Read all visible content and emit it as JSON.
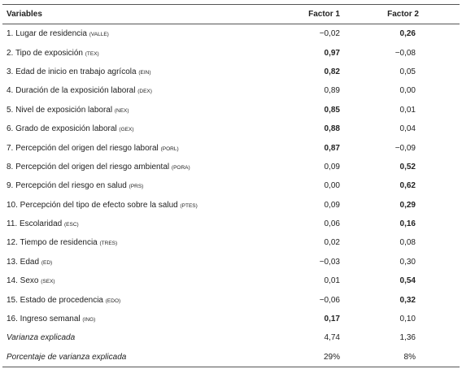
{
  "table": {
    "header": [
      "Variables",
      "Factor 1",
      "Factor 2"
    ],
    "rows": [
      {
        "variable": "1. Lugar de residencia",
        "abbr": "(VALLE)",
        "factor1": "−0,02",
        "factor2": "0,26",
        "bold1": false,
        "bold2": true
      },
      {
        "variable": "2. Tipo de exposición",
        "abbr": "(TEX)",
        "factor1": "0,97",
        "factor2": "−0,08",
        "bold1": true,
        "bold2": false
      },
      {
        "variable": "3. Edad de inicio en trabajo agrícola",
        "abbr": "(EIN)",
        "factor1": "0,82",
        "factor2": "0,05",
        "bold1": true,
        "bold2": false
      },
      {
        "variable": "4. Duración de la exposición laboral",
        "abbr": "(DEX)",
        "factor1": "0,89",
        "factor2": "0,00",
        "bold1": false,
        "bold2": false
      },
      {
        "variable": "5. Nivel de exposición laboral",
        "abbr": "(NEX)",
        "factor1": "0,85",
        "factor2": "0,01",
        "bold1": true,
        "bold2": false
      },
      {
        "variable": "6. Grado de exposición laboral",
        "abbr": "(GEX)",
        "factor1": "0,88",
        "factor2": "0,04",
        "bold1": true,
        "bold2": false
      },
      {
        "variable": "7. Percepción del origen del riesgo laboral",
        "abbr": "(PORL)",
        "factor1": "0,87",
        "factor2": "−0,09",
        "bold1": true,
        "bold2": false
      },
      {
        "variable": "8. Percepción del origen del riesgo ambiental",
        "abbr": "(PORA)",
        "factor1": "0,09",
        "factor2": "0,52",
        "bold1": false,
        "bold2": true
      },
      {
        "variable": "9. Percepción del riesgo en salud",
        "abbr": "(PRS)",
        "factor1": "0,00",
        "factor2": "0,62",
        "bold1": false,
        "bold2": true
      },
      {
        "variable": "10. Percepción del tipo de efecto sobre la salud",
        "abbr": "(PTES)",
        "factor1": "0,09",
        "factor2": "0,29",
        "bold1": false,
        "bold2": true
      },
      {
        "variable": "11. Escolaridad",
        "abbr": "(ESC)",
        "factor1": "0,06",
        "factor2": "0,16",
        "bold1": false,
        "bold2": true
      },
      {
        "variable": "12. Tiempo de residencia",
        "abbr": "(TRES)",
        "factor1": "0,02",
        "factor2": "0,08",
        "bold1": false,
        "bold2": false
      },
      {
        "variable": "13. Edad",
        "abbr": "(ED)",
        "factor1": "−0,03",
        "factor2": "0,30",
        "bold1": false,
        "bold2": false
      },
      {
        "variable": "14. Sexo",
        "abbr": "(SEX)",
        "factor1": "0,01",
        "factor2": "0,54",
        "bold1": false,
        "bold2": true
      },
      {
        "variable": "15. Estado de procedencia",
        "abbr": "(EDO)",
        "factor1": "−0,06",
        "factor2": "0,32",
        "bold1": false,
        "bold2": true
      },
      {
        "variable": "16. Ingreso semanal",
        "abbr": "(ING)",
        "factor1": "0,17",
        "factor2": "0,10",
        "bold1": true,
        "bold2": false
      }
    ],
    "summary": [
      {
        "label": "Varianza explicada",
        "factor1": "4,74",
        "factor2": "1,36"
      },
      {
        "label": "Porcentaje de varianza explicada",
        "factor1": "29%",
        "factor2": "8%"
      }
    ]
  }
}
